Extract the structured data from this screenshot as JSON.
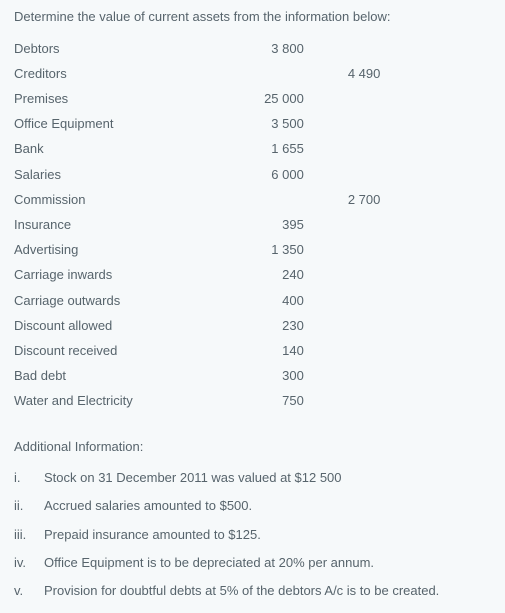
{
  "title": "Determine the value of current assets from the information below:",
  "rows": [
    {
      "label": "Debtors",
      "col1": "3 800",
      "col2": ""
    },
    {
      "label": "Creditors",
      "col1": "",
      "col2": "4 490"
    },
    {
      "label": "Premises",
      "col1": "25 000",
      "col2": ""
    },
    {
      "label": "Office Equipment",
      "col1": "3 500",
      "col2": ""
    },
    {
      "label": "Bank",
      "col1": "1 655",
      "col2": ""
    },
    {
      "label": "Salaries",
      "col1": "6 000",
      "col2": ""
    },
    {
      "label": "Commission",
      "col1": "",
      "col2": "2 700"
    },
    {
      "label": "Insurance",
      "col1": "395",
      "col2": ""
    },
    {
      "label": "Advertising",
      "col1": "1 350",
      "col2": ""
    },
    {
      "label": "Carriage inwards",
      "col1": "240",
      "col2": ""
    },
    {
      "label": "Carriage outwards",
      "col1": "400",
      "col2": ""
    },
    {
      "label": "Discount allowed",
      "col1": "230",
      "col2": ""
    },
    {
      "label": "Discount received",
      "col1": "140",
      "col2": ""
    },
    {
      "label": "Bad debt",
      "col1": "300",
      "col2": ""
    },
    {
      "label": "Water and Electricity",
      "col1": "750",
      "col2": ""
    }
  ],
  "additional": {
    "heading": "Additional Information:",
    "items": [
      {
        "marker": "i.",
        "text": "Stock on 31 December 2011 was valued at $12 500"
      },
      {
        "marker": "ii.",
        "text": "Accrued salaries amounted to $500."
      },
      {
        "marker": "iii.",
        "text": "Prepaid insurance amounted to $125."
      },
      {
        "marker": "iv.",
        "text": "Office Equipment is to be depreciated at 20% per annum."
      },
      {
        "marker": "v.",
        "text": "Provision for doubtful debts at 5% of the debtors A/c is to be created."
      }
    ]
  },
  "colors": {
    "background": "#f6f9fa",
    "text": "#57646c"
  }
}
